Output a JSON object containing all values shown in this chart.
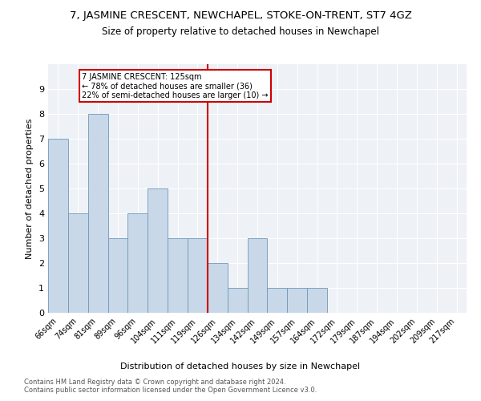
{
  "title": "7, JASMINE CRESCENT, NEWCHAPEL, STOKE-ON-TRENT, ST7 4GZ",
  "subtitle": "Size of property relative to detached houses in Newchapel",
  "xlabel": "Distribution of detached houses by size in Newchapel",
  "ylabel": "Number of detached properties",
  "footnote1": "Contains HM Land Registry data © Crown copyright and database right 2024.",
  "footnote2": "Contains public sector information licensed under the Open Government Licence v3.0.",
  "categories": [
    "66sqm",
    "74sqm",
    "81sqm",
    "89sqm",
    "96sqm",
    "104sqm",
    "111sqm",
    "119sqm",
    "126sqm",
    "134sqm",
    "142sqm",
    "149sqm",
    "157sqm",
    "164sqm",
    "172sqm",
    "179sqm",
    "187sqm",
    "194sqm",
    "202sqm",
    "209sqm",
    "217sqm"
  ],
  "values": [
    7,
    4,
    8,
    3,
    4,
    5,
    3,
    3,
    2,
    1,
    3,
    1,
    1,
    1,
    0,
    0,
    0,
    0,
    0,
    0,
    0
  ],
  "bar_color": "#c8d8e8",
  "bar_edge_color": "#7098b8",
  "vline_index": 8,
  "vline_color": "#cc0000",
  "annotation_text": "7 JASMINE CRESCENT: 125sqm\n← 78% of detached houses are smaller (36)\n22% of semi-detached houses are larger (10) →",
  "annotation_box_color": "#cc0000",
  "ylim": [
    0,
    10
  ],
  "yticks": [
    0,
    1,
    2,
    3,
    4,
    5,
    6,
    7,
    8,
    9,
    10
  ],
  "background_color": "#eef2f7",
  "grid_color": "#ffffff",
  "title_fontsize": 9.5,
  "subtitle_fontsize": 8.5,
  "ylabel_fontsize": 8,
  "xlabel_fontsize": 8,
  "tick_fontsize": 7,
  "annotation_fontsize": 7,
  "footnote_fontsize": 6
}
